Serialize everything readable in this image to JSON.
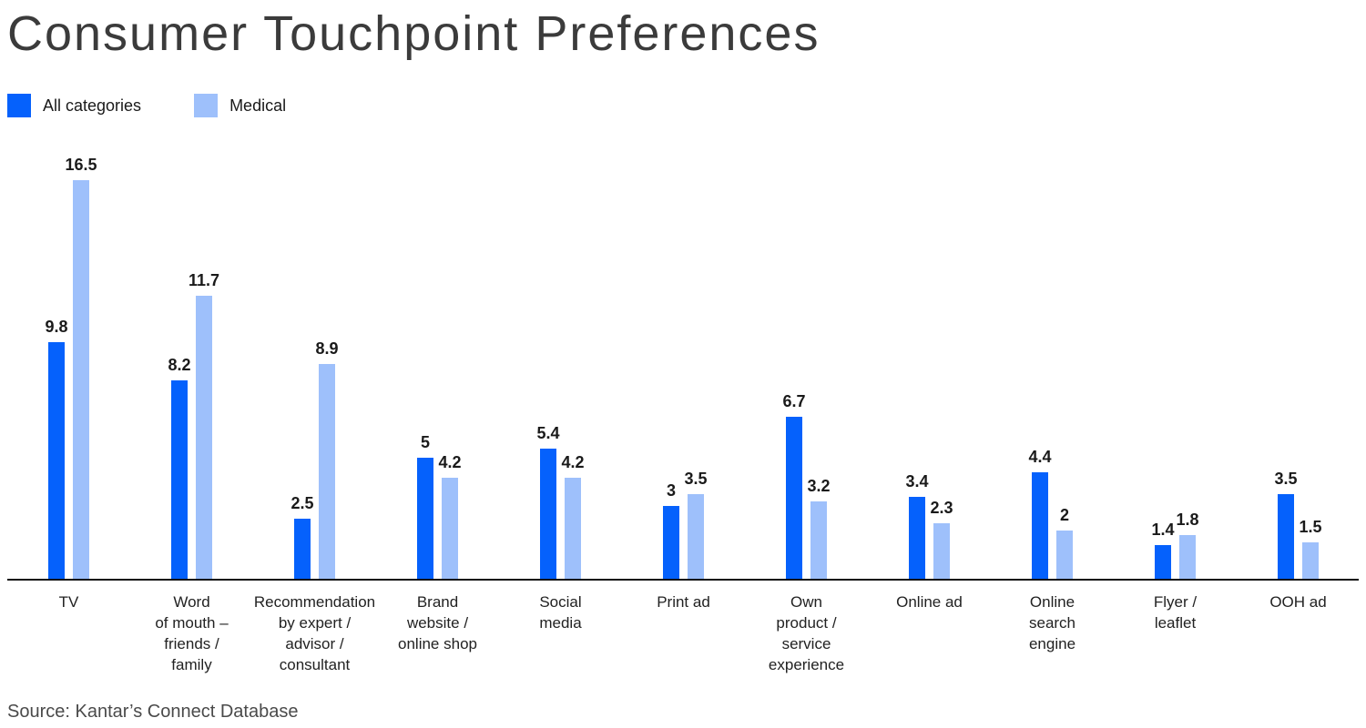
{
  "title": "Consumer Touchpoint Preferences",
  "source": "Source: Kantar’s Connect Database",
  "chart_data": {
    "type": "bar",
    "title": "Consumer Touchpoint Preferences",
    "categories": [
      "TV",
      "Word\nof mouth –\nfriends /\nfamily",
      "Recommendation\nby expert /\nadvisor /\nconsultant",
      "Brand\nwebsite /\nonline shop",
      "Social\nmedia",
      "Print ad",
      "Own\nproduct /\nservice\nexperience",
      "Online ad",
      "Online\nsearch\nengine",
      "Flyer /\nleaflet",
      "OOH ad"
    ],
    "series": [
      {
        "name": "All categories",
        "color": "#0561fc",
        "values": [
          9.8,
          8.2,
          2.5,
          5,
          5.4,
          3,
          6.7,
          3.4,
          4.4,
          1.4,
          3.5
        ]
      },
      {
        "name": "Medical",
        "color": "#9ec0fb",
        "values": [
          16.5,
          11.7,
          8.9,
          4.2,
          4.2,
          3.5,
          3.2,
          2.3,
          2,
          1.8,
          1.5
        ]
      }
    ],
    "xlabel": "",
    "ylabel": "",
    "ylim": [
      0,
      16.5
    ],
    "grid": false,
    "value_labels": true,
    "legend_position": "top-left",
    "axis_color": "#111111",
    "value_label_color": "#1a1a1a"
  }
}
